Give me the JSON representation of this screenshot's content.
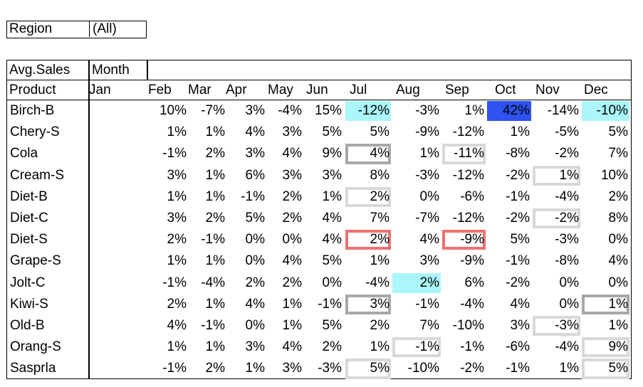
{
  "filter": {
    "label": "Region",
    "value": "(All)"
  },
  "pivot": {
    "corner_label": "Avg.Sales",
    "column_field": "Month",
    "row_header": "Product",
    "months": [
      "Jan",
      "Feb",
      "Mar",
      "Apr",
      "May",
      "Jun",
      "Jul",
      "Aug",
      "Sep",
      "Oct",
      "Nov",
      "Dec"
    ],
    "rows": [
      {
        "product": "Birch-B",
        "values": [
          "",
          "10%",
          "-7%",
          "3%",
          "-4%",
          "15%",
          "-12%",
          "-3%",
          "1%",
          "42%",
          "-14%",
          "-10%"
        ]
      },
      {
        "product": "Chery-S",
        "values": [
          "",
          "1%",
          "1%",
          "4%",
          "3%",
          "5%",
          "5%",
          "-9%",
          "-12%",
          "1%",
          "-5%",
          "5%"
        ]
      },
      {
        "product": "Cola",
        "values": [
          "",
          "-1%",
          "2%",
          "3%",
          "4%",
          "9%",
          "4%",
          "1%",
          "-11%",
          "-8%",
          "-2%",
          "7%"
        ]
      },
      {
        "product": "Cream-S",
        "values": [
          "",
          "3%",
          "1%",
          "6%",
          "3%",
          "3%",
          "8%",
          "-3%",
          "-12%",
          "-2%",
          "1%",
          "10%"
        ]
      },
      {
        "product": "Diet-B",
        "values": [
          "",
          "1%",
          "1%",
          "-1%",
          "2%",
          "1%",
          "2%",
          "0%",
          "-6%",
          "-1%",
          "-4%",
          "2%"
        ]
      },
      {
        "product": "Diet-C",
        "values": [
          "",
          "3%",
          "2%",
          "5%",
          "2%",
          "4%",
          "7%",
          "-7%",
          "-12%",
          "-2%",
          "-2%",
          "8%"
        ]
      },
      {
        "product": "Diet-S",
        "values": [
          "",
          "2%",
          "-1%",
          "0%",
          "0%",
          "4%",
          "2%",
          "4%",
          "-9%",
          "5%",
          "-3%",
          "0%"
        ]
      },
      {
        "product": "Grape-S",
        "values": [
          "",
          "1%",
          "1%",
          "0%",
          "4%",
          "5%",
          "1%",
          "3%",
          "-9%",
          "-1%",
          "-8%",
          "4%"
        ]
      },
      {
        "product": "Jolt-C",
        "values": [
          "",
          "-1%",
          "-4%",
          "2%",
          "2%",
          "0%",
          "-4%",
          "2%",
          "6%",
          "-2%",
          "0%",
          "0%"
        ]
      },
      {
        "product": "Kiwi-S",
        "values": [
          "",
          "2%",
          "1%",
          "4%",
          "1%",
          "-1%",
          "3%",
          "-1%",
          "-4%",
          "4%",
          "0%",
          "1%"
        ]
      },
      {
        "product": "Old-B",
        "values": [
          "",
          "4%",
          "-1%",
          "0%",
          "1%",
          "5%",
          "2%",
          "7%",
          "-10%",
          "3%",
          "-3%",
          "1%"
        ]
      },
      {
        "product": "Orang-S",
        "values": [
          "",
          "1%",
          "1%",
          "3%",
          "4%",
          "2%",
          "1%",
          "-1%",
          "-1%",
          "-6%",
          "-4%",
          "9%"
        ]
      },
      {
        "product": "Sasprla",
        "values": [
          "",
          "-1%",
          "2%",
          "1%",
          "3%",
          "-3%",
          "5%",
          "-10%",
          "-2%",
          "-1%",
          "1%",
          "5%"
        ]
      }
    ]
  },
  "highlight_colors": {
    "cyan_fill": "#aaf6fa",
    "blue_fill": "#2f52f0",
    "red_border": "#f07070",
    "dark_gray_border": "#a8a8a8",
    "light_gray_border": "#d8d8d8"
  },
  "highlights": [
    {
      "row": 0,
      "col": 6,
      "type": "cyan_fill"
    },
    {
      "row": 0,
      "col": 9,
      "type": "blue_fill"
    },
    {
      "row": 0,
      "col": 11,
      "type": "cyan_fill"
    },
    {
      "row": 8,
      "col": 7,
      "type": "cyan_fill"
    },
    {
      "row": 6,
      "col": 6,
      "type": "red_border"
    },
    {
      "row": 6,
      "col": 8,
      "type": "red_border"
    },
    {
      "row": 2,
      "col": 6,
      "type": "dark_gray_border"
    },
    {
      "row": 9,
      "col": 6,
      "type": "dark_gray_border"
    },
    {
      "row": 9,
      "col": 11,
      "type": "dark_gray_border"
    },
    {
      "row": 2,
      "col": 8,
      "type": "light_gray_border"
    },
    {
      "row": 3,
      "col": 10,
      "type": "light_gray_border"
    },
    {
      "row": 4,
      "col": 6,
      "type": "light_gray_border"
    },
    {
      "row": 5,
      "col": 10,
      "type": "light_gray_border"
    },
    {
      "row": 10,
      "col": 10,
      "type": "light_gray_border"
    },
    {
      "row": 11,
      "col": 7,
      "type": "light_gray_border"
    },
    {
      "row": 11,
      "col": 11,
      "type": "light_gray_border"
    },
    {
      "row": 12,
      "col": 6,
      "type": "light_gray_border"
    },
    {
      "row": 12,
      "col": 11,
      "type": "light_gray_border"
    }
  ]
}
